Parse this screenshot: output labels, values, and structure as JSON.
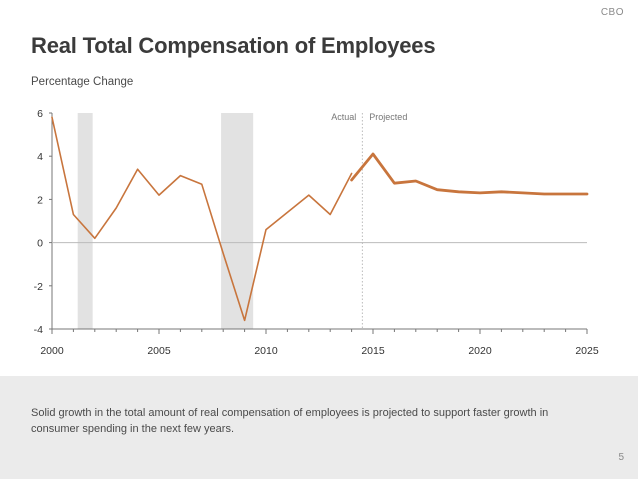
{
  "header": {
    "org": "CBO"
  },
  "chart_data": {
    "type": "line",
    "title": "Real Total Compensation of Employees",
    "ylabel": "Percentage Change",
    "xlabel": "",
    "xlim": [
      2000,
      2025
    ],
    "ylim": [
      -4,
      6
    ],
    "x_ticks": [
      2000,
      2005,
      2010,
      2015,
      2020,
      2025
    ],
    "y_ticks": [
      6,
      4,
      2,
      0,
      -2,
      -4
    ],
    "recessions": [
      [
        2001.2,
        2001.9
      ],
      [
        2007.9,
        2009.4
      ]
    ],
    "divider_x": 2014.5,
    "annotations": {
      "left": "Actual",
      "right": "Projected"
    },
    "series": [
      {
        "name": "Actual",
        "x": [
          2000,
          2001,
          2002,
          2003,
          2004,
          2005,
          2006,
          2007,
          2008,
          2009,
          2010,
          2011,
          2012,
          2013,
          2014
        ],
        "values": [
          5.8,
          1.3,
          0.2,
          1.6,
          3.4,
          2.2,
          3.1,
          2.7,
          -0.5,
          -3.6,
          0.6,
          1.4,
          2.2,
          1.3,
          3.2
        ]
      },
      {
        "name": "Projected",
        "x": [
          2014,
          2015,
          2016,
          2017,
          2018,
          2019,
          2020,
          2021,
          2022,
          2023,
          2024,
          2025
        ],
        "values": [
          2.9,
          4.1,
          2.75,
          2.85,
          2.45,
          2.35,
          2.3,
          2.35,
          2.3,
          2.25,
          2.25,
          2.25
        ]
      }
    ],
    "colors": {
      "line": "#c8753d",
      "recession": "#e2e2e2",
      "zero": "#bbbbbb"
    }
  },
  "caption": "Solid growth in the total amount of real compensation of employees is projected to support faster growth in consumer spending in the next few years.",
  "page_number": "5"
}
